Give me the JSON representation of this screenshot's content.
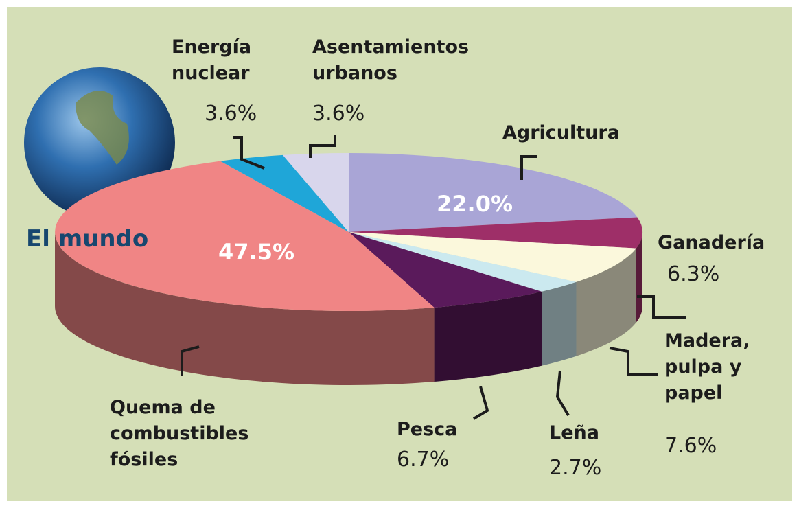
{
  "chart_data": {
    "type": "pie",
    "title": "El mundo",
    "categories": [
      "Agricultura",
      "Ganadería",
      "Madera, pulpa y papel",
      "Leña",
      "Pesca",
      "Quema de combustibles fósiles",
      "Energía nuclear",
      "Asentamientos urbanos"
    ],
    "values": [
      22.0,
      6.3,
      7.6,
      2.7,
      6.7,
      47.5,
      3.6,
      3.6
    ],
    "value_labels": [
      "22.0%",
      "6.3%",
      "7.6%",
      "2.7%",
      "6.7%",
      "47.5%",
      "3.6%",
      "3.6%"
    ],
    "colors": [
      "#a9a5d6",
      "#9e2f68",
      "#fbf8dc",
      "#cbe9ef",
      "#5a1a5b",
      "#f08585",
      "#1fa6d8",
      "#d8d6ec"
    ]
  }
}
